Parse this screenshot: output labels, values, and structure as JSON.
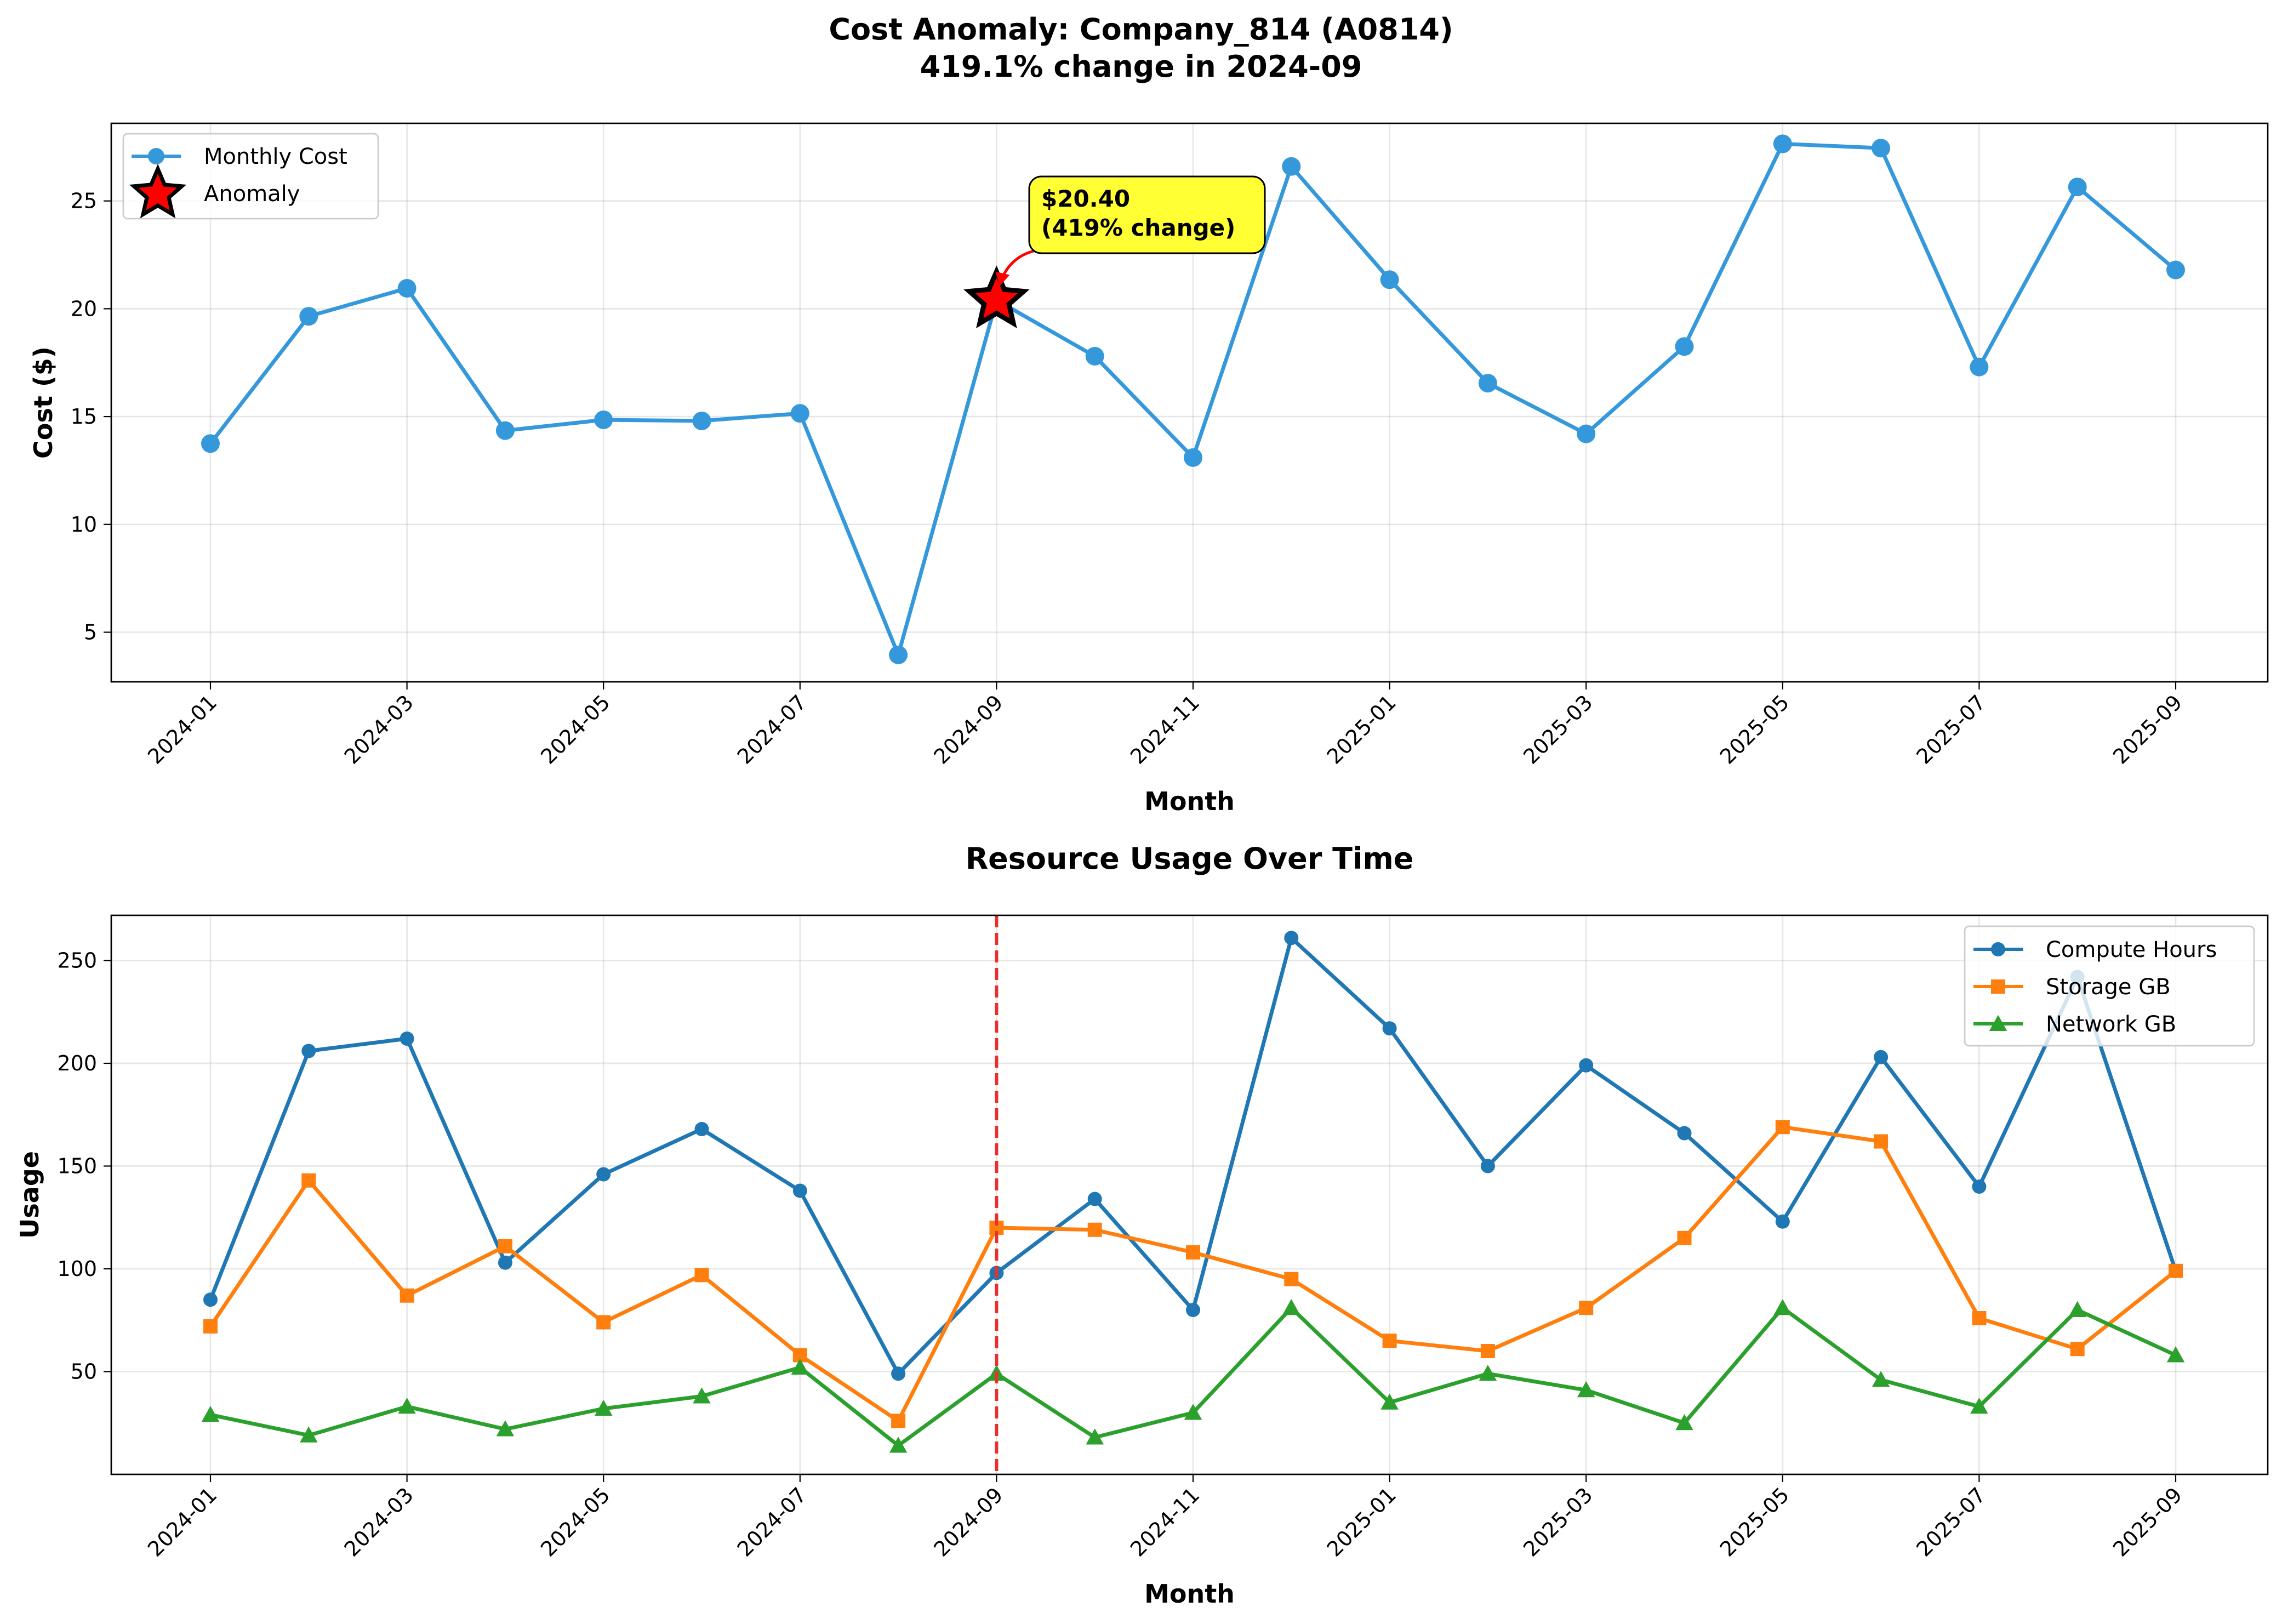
{
  "figure": {
    "suptitle_line1": "Cost Anomaly: Company_814 (A0814)",
    "suptitle_line2": "419.1% change in 2024-09"
  },
  "chart_data": [
    {
      "type": "line",
      "id": "cost",
      "title": "",
      "xlabel": "Month",
      "ylabel": "Cost ($)",
      "x": [
        "2024-01",
        "2024-02",
        "2024-03",
        "2024-04",
        "2024-05",
        "2024-06",
        "2024-07",
        "2024-08",
        "2024-09",
        "2024-10",
        "2024-11",
        "2024-12",
        "2025-01",
        "2025-02",
        "2025-03",
        "2025-04",
        "2025-05",
        "2025-06",
        "2025-07",
        "2025-08",
        "2025-09"
      ],
      "xtick_labels": [
        "2024-01",
        "2024-03",
        "2024-05",
        "2024-07",
        "2024-09",
        "2024-11",
        "2025-01",
        "2025-03",
        "2025-05",
        "2025-07",
        "2025-09"
      ],
      "ylim": [
        2.7,
        28.6
      ],
      "yticks": [
        5,
        10,
        15,
        20,
        25
      ],
      "series": [
        {
          "name": "Monthly Cost",
          "color": "#3498db",
          "marker": "circle",
          "values": [
            13.75,
            19.65,
            20.95,
            14.35,
            14.85,
            14.8,
            15.15,
            3.95,
            20.4,
            17.8,
            13.1,
            26.6,
            21.35,
            16.55,
            14.2,
            18.25,
            27.65,
            27.45,
            17.3,
            25.65,
            21.8
          ]
        }
      ],
      "anomaly": {
        "name": "Anomaly",
        "x": "2024-09",
        "value": 20.4,
        "color": "#ff0000",
        "label_line1": "$20.40",
        "label_line2": "(419% change)",
        "label_bg": "#ffff33"
      },
      "legend": "top-left"
    },
    {
      "type": "line",
      "id": "usage",
      "title": "Resource Usage Over Time",
      "xlabel": "Month",
      "ylabel": "Usage",
      "x": [
        "2024-01",
        "2024-02",
        "2024-03",
        "2024-04",
        "2024-05",
        "2024-06",
        "2024-07",
        "2024-08",
        "2024-09",
        "2024-10",
        "2024-11",
        "2024-12",
        "2025-01",
        "2025-02",
        "2025-03",
        "2025-04",
        "2025-05",
        "2025-06",
        "2025-07",
        "2025-08",
        "2025-09"
      ],
      "xtick_labels": [
        "2024-01",
        "2024-03",
        "2024-05",
        "2024-07",
        "2024-09",
        "2024-11",
        "2025-01",
        "2025-03",
        "2025-05",
        "2025-07",
        "2025-09"
      ],
      "ylim": [
        0,
        272
      ],
      "yticks": [
        50,
        100,
        150,
        200,
        250
      ],
      "series": [
        {
          "name": "Compute Hours",
          "color": "#1f77b4",
          "marker": "circle",
          "values": [
            85,
            206,
            212,
            103,
            146,
            168,
            138,
            49,
            98,
            134,
            80,
            261,
            217,
            150,
            199,
            166,
            123,
            203,
            140,
            242,
            99
          ]
        },
        {
          "name": "Storage GB",
          "color": "#ff7f0e",
          "marker": "square",
          "values": [
            72,
            143,
            87,
            111,
            74,
            97,
            58,
            26,
            120,
            119,
            108,
            95,
            65,
            60,
            81,
            115,
            169,
            162,
            76,
            61,
            99
          ]
        },
        {
          "name": "Network GB",
          "color": "#2ca02c",
          "marker": "triangle",
          "values": [
            29,
            19,
            33,
            22,
            32,
            38,
            52,
            14,
            49,
            18,
            30,
            81,
            35,
            49,
            41,
            25,
            81,
            46,
            33,
            80,
            58
          ]
        }
      ],
      "vline": {
        "x": "2024-09",
        "color": "#e8312f"
      },
      "legend": "top-right"
    }
  ]
}
